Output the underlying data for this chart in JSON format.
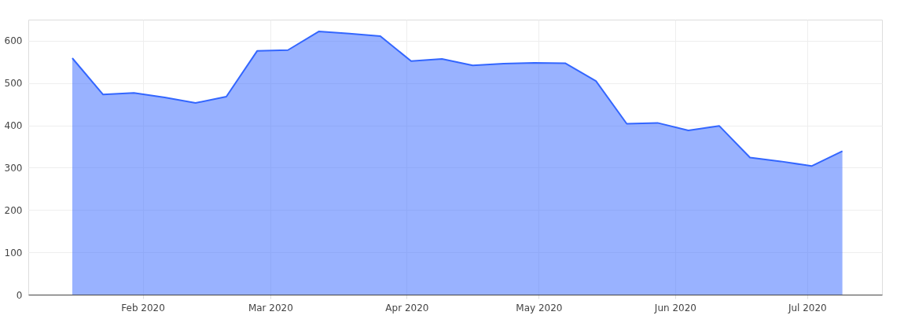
{
  "chart_data": {
    "type": "area",
    "x": [
      "2020-01-16",
      "2020-01-23",
      "2020-01-30",
      "2020-02-06",
      "2020-02-13",
      "2020-02-20",
      "2020-02-27",
      "2020-03-05",
      "2020-03-12",
      "2020-03-19",
      "2020-03-26",
      "2020-04-02",
      "2020-04-09",
      "2020-04-16",
      "2020-04-23",
      "2020-04-30",
      "2020-05-07",
      "2020-05-14",
      "2020-05-21",
      "2020-05-28",
      "2020-06-04",
      "2020-06-11",
      "2020-06-18",
      "2020-06-25",
      "2020-07-02",
      "2020-07-09"
    ],
    "series": [
      {
        "color": "#3366ff",
        "values": [
          559,
          473,
          477,
          466,
          453,
          468,
          576,
          578,
          622,
          617,
          611,
          552,
          557,
          542,
          546,
          548,
          547,
          505,
          404,
          406,
          388,
          399,
          324,
          315,
          304,
          339
        ]
      }
    ],
    "xlim": [
      "2020-01-06",
      "2020-07-18"
    ],
    "xticks": [
      {
        "value": "2020-02-01",
        "label": "Feb 2020"
      },
      {
        "value": "2020-03-01",
        "label": "Mar 2020"
      },
      {
        "value": "2020-04-01",
        "label": "Apr 2020"
      },
      {
        "value": "2020-05-01",
        "label": "May 2020"
      },
      {
        "value": "2020-06-01",
        "label": "Jun 2020"
      },
      {
        "value": "2020-07-01",
        "label": "Jul 2020"
      }
    ],
    "ylim": [
      0,
      650
    ],
    "yticks": [
      0,
      100,
      200,
      300,
      400,
      500,
      600
    ],
    "grid": true
  }
}
